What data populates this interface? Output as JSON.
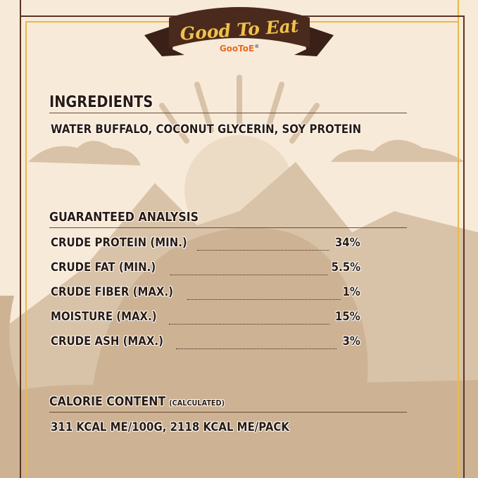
{
  "banner": {
    "title": "Good To Eat",
    "brand": "GooToE",
    "registered": "®"
  },
  "ingredients": {
    "heading": "INGREDIENTS",
    "text": "WATER BUFFALO, COCONUT GLYCERIN, SOY PROTEIN"
  },
  "analysis": {
    "heading": "GUARANTEED ANALYSIS",
    "rows": [
      {
        "label": "CRUDE PROTEIN (MIN.)",
        "value": "34%"
      },
      {
        "label": "CRUDE FAT (MIN.)",
        "value": "5.5%"
      },
      {
        "label": "CRUDE FIBER (MAX.)",
        "value": "1%"
      },
      {
        "label": "MOISTURE (MAX.)",
        "value": "15%"
      },
      {
        "label": "CRUDE ASH (MAX.)",
        "value": "3%"
      }
    ]
  },
  "calorie": {
    "heading": "CALORIE CONTENT",
    "note": "(CALCULATED)",
    "text": "311 KCAL ME/100G, 2118 KCAL ME/PACK"
  },
  "colors": {
    "background": "#f7ead8",
    "illustration": "#d5bda2",
    "banner": "#4a2a1c",
    "border_brown": "#5a3424",
    "border_gold": "#e8b94a"
  }
}
